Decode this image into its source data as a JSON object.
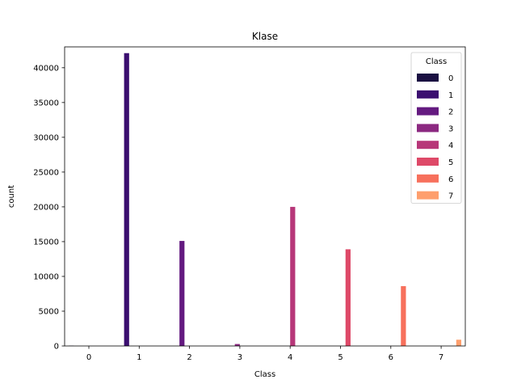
{
  "chart_data": {
    "type": "bar",
    "title": "Klase",
    "xlabel": "Class",
    "ylabel": "count",
    "categories": [
      "0",
      "1",
      "2",
      "3",
      "4",
      "5",
      "6",
      "7"
    ],
    "ylim": [
      0,
      43000
    ],
    "yticks": [
      0,
      5000,
      10000,
      15000,
      20000,
      25000,
      30000,
      35000,
      40000
    ],
    "grid": false,
    "legend": {
      "title": "Class",
      "placement": "top-right",
      "entries": [
        "0",
        "1",
        "2",
        "3",
        "4",
        "5",
        "6",
        "7"
      ]
    },
    "series": [
      {
        "name": "0",
        "color": "#1a1042",
        "values": [
          30,
          0,
          0,
          0,
          0,
          0,
          0,
          0
        ]
      },
      {
        "name": "1",
        "color": "#3b0f70",
        "values": [
          0,
          42100,
          0,
          0,
          0,
          0,
          0,
          0
        ]
      },
      {
        "name": "2",
        "color": "#641a80",
        "values": [
          0,
          0,
          15100,
          0,
          0,
          0,
          0,
          0
        ]
      },
      {
        "name": "3",
        "color": "#8c2981",
        "values": [
          0,
          0,
          0,
          280,
          0,
          0,
          0,
          0
        ]
      },
      {
        "name": "4",
        "color": "#b73779",
        "values": [
          0,
          0,
          0,
          0,
          20000,
          0,
          0,
          0
        ]
      },
      {
        "name": "5",
        "color": "#de4968",
        "values": [
          0,
          0,
          0,
          0,
          0,
          13900,
          0,
          0
        ]
      },
      {
        "name": "6",
        "color": "#f7705c",
        "values": [
          0,
          0,
          0,
          0,
          0,
          0,
          8600,
          0
        ]
      },
      {
        "name": "7",
        "color": "#fe9f6d",
        "values": [
          0,
          0,
          0,
          0,
          0,
          0,
          0,
          900
        ]
      }
    ]
  }
}
